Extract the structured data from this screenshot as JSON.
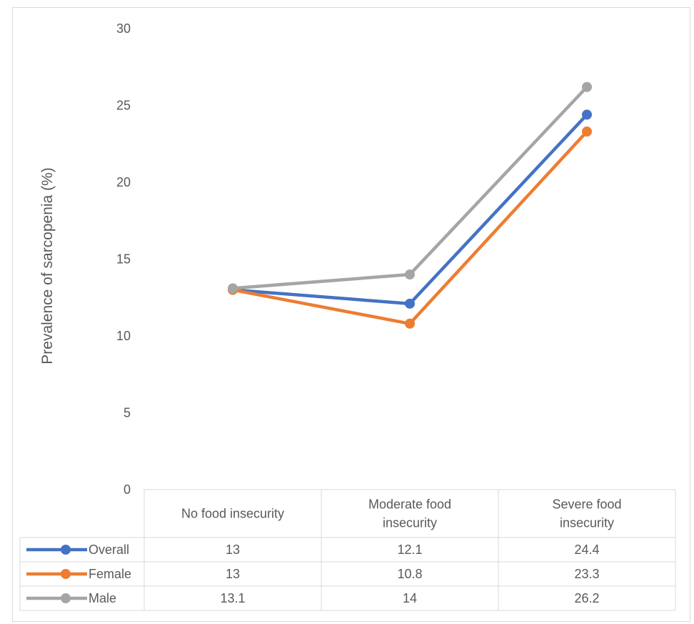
{
  "chart_data": {
    "type": "line",
    "title": "",
    "xlabel": "",
    "ylabel": "Prevalence of sarcopenia (%)",
    "ylim": [
      0,
      30
    ],
    "yticks": [
      0,
      5,
      10,
      15,
      20,
      25,
      30
    ],
    "grid": false,
    "legend": "data-table",
    "categories": [
      [
        "No food insecurity"
      ],
      [
        "Moderate food",
        "insecurity"
      ],
      [
        "Severe food",
        "insecurity"
      ]
    ],
    "series": [
      {
        "name": "Overall",
        "color": "#4472c4",
        "values": [
          13,
          12.1,
          24.4
        ]
      },
      {
        "name": "Female",
        "color": "#ed7d31",
        "values": [
          13,
          10.8,
          23.3
        ]
      },
      {
        "name": "Male",
        "color": "#a5a5a5",
        "values": [
          13.1,
          14,
          26.2
        ]
      }
    ]
  }
}
